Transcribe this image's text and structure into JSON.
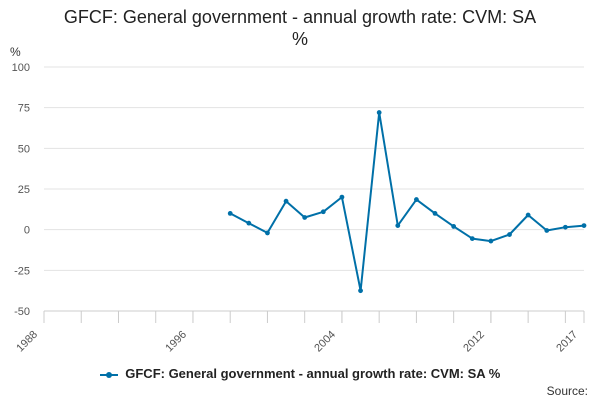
{
  "chart_data": {
    "type": "line",
    "title_line1": "GFCF: General government - annual growth rate: CVM: SA",
    "title_line2": "%",
    "ylabel": "%",
    "ylim": [
      -50,
      100
    ],
    "yticks": [
      100,
      75,
      50,
      25,
      0,
      -25,
      -50
    ],
    "xlim": [
      1988,
      2017
    ],
    "xticks": [
      1988,
      1996,
      2004,
      2012,
      2017
    ],
    "grid": true,
    "legend_position": "bottom",
    "series": [
      {
        "name": "GFCF: General government - annual growth rate: CVM: SA %",
        "color": "#0070a8",
        "x": [
          1998,
          1999,
          2000,
          2001,
          2002,
          2003,
          2004,
          2005,
          2006,
          2007,
          2008,
          2009,
          2010,
          2011,
          2012,
          2013,
          2014,
          2015,
          2016,
          2017
        ],
        "y": [
          10,
          4,
          -2,
          17.5,
          7.5,
          11,
          20,
          -37.5,
          72,
          2.5,
          18.5,
          10,
          2,
          -5.5,
          -7,
          -3,
          9,
          -0.5,
          1.5,
          2.5
        ]
      }
    ]
  },
  "source_label": "Source:"
}
